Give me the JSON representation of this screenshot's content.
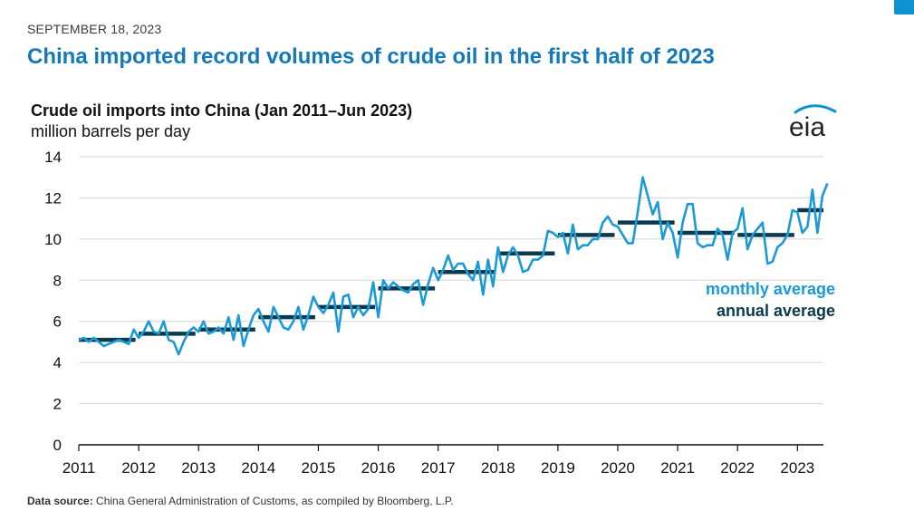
{
  "header": {
    "date": "SEPTEMBER 18, 2023",
    "headline": "China imported record volumes of crude oil in the first half of 2023"
  },
  "logo": {
    "text": "eia",
    "icon": "eia-logo-icon"
  },
  "source": {
    "label": "Data source:",
    "text": "China General Administration of Customs, as compiled by Bloomberg, L.P."
  },
  "colors": {
    "monthly": "#1a9ad6",
    "annual": "#0b3a4e",
    "accent": "#1479b8"
  },
  "chart_data": {
    "type": "line",
    "title": "Crude oil imports into China (Jan 2011–Jun 2023)",
    "subtitle": "million barrels per day",
    "xlabel": "",
    "ylabel": "",
    "ylim": [
      0,
      14
    ],
    "yticks": [
      0,
      2,
      4,
      6,
      8,
      10,
      12,
      14
    ],
    "xticks": [
      "2011",
      "2012",
      "2013",
      "2014",
      "2015",
      "2016",
      "2017",
      "2018",
      "2019",
      "2020",
      "2021",
      "2022",
      "2023"
    ],
    "grid": true,
    "legend": [
      {
        "name": "monthly average",
        "color": "#1a9ad6"
      },
      {
        "name": "annual average",
        "color": "#0b3a4e"
      }
    ],
    "legend_position": "right",
    "series": [
      {
        "name": "monthly average",
        "start": "2011-01",
        "frequency": "monthly",
        "values": [
          5.1,
          5.2,
          5.0,
          5.2,
          5.0,
          4.8,
          4.9,
          5.0,
          5.1,
          5.0,
          4.9,
          5.6,
          5.2,
          5.5,
          6.0,
          5.5,
          5.4,
          6.0,
          5.1,
          5.0,
          4.4,
          5.0,
          5.5,
          5.7,
          5.5,
          6.0,
          5.4,
          5.5,
          5.7,
          5.4,
          6.2,
          5.1,
          6.3,
          4.8,
          5.6,
          6.3,
          6.6,
          6.0,
          5.5,
          6.7,
          6.2,
          5.7,
          5.6,
          6.0,
          6.7,
          5.6,
          6.3,
          7.2,
          6.7,
          6.4,
          6.8,
          7.4,
          5.5,
          7.2,
          7.3,
          6.2,
          6.7,
          6.3,
          6.6,
          7.9,
          6.2,
          8.0,
          7.6,
          7.9,
          7.7,
          7.5,
          7.4,
          7.8,
          8.0,
          6.8,
          7.8,
          8.6,
          8.0,
          8.5,
          9.2,
          8.5,
          8.8,
          8.8,
          8.3,
          8.0,
          8.9,
          7.3,
          9.0,
          7.7,
          9.6,
          8.4,
          9.2,
          9.6,
          9.2,
          8.4,
          8.5,
          9.0,
          9.0,
          9.2,
          10.4,
          10.3,
          10.1,
          10.3,
          9.3,
          10.7,
          9.5,
          9.7,
          9.7,
          10.0,
          10.0,
          10.8,
          11.1,
          10.7,
          10.6,
          10.2,
          9.8,
          9.8,
          11.3,
          13.0,
          12.1,
          11.2,
          11.8,
          10.0,
          10.8,
          10.3,
          9.1,
          10.8,
          11.7,
          11.7,
          9.8,
          9.6,
          9.7,
          9.7,
          10.5,
          10.2,
          9.0,
          10.3,
          10.5,
          11.5,
          9.5,
          10.2,
          10.5,
          10.8,
          8.8,
          8.9,
          9.6,
          9.8,
          10.2,
          11.4,
          11.3,
          10.3,
          10.6,
          12.4,
          10.3,
          12.1,
          12.7
        ]
      },
      {
        "name": "annual average",
        "years": [
          2011,
          2012,
          2013,
          2014,
          2015,
          2016,
          2017,
          2018,
          2019,
          2020,
          2021,
          2022,
          2023
        ],
        "values": [
          5.1,
          5.4,
          5.6,
          6.2,
          6.7,
          7.6,
          8.4,
          9.3,
          10.2,
          10.8,
          10.3,
          10.2,
          11.4
        ]
      }
    ]
  }
}
